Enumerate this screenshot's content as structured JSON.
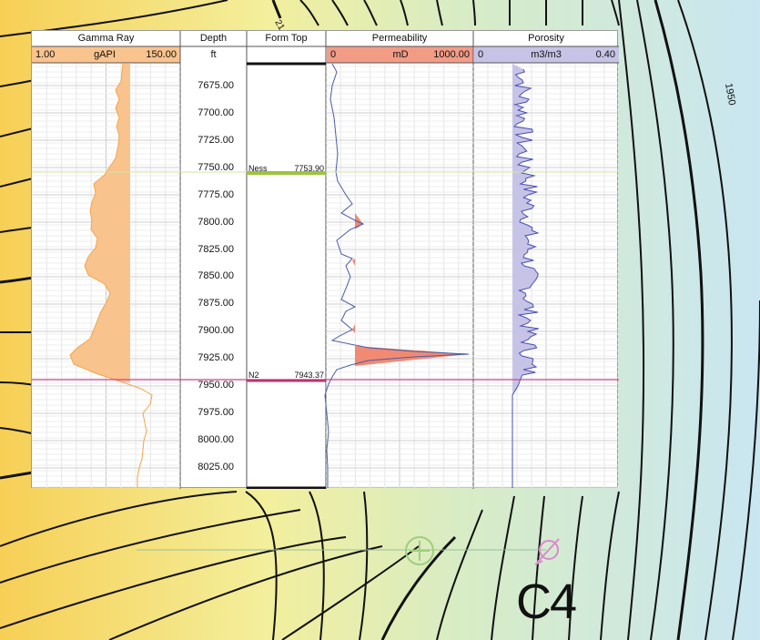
{
  "tracks": {
    "gamma": {
      "title": "Gamma Ray",
      "min": "1.00",
      "unit": "gAPI",
      "max": "150.00",
      "fill": "#f9c38d",
      "header_fill": "#f9c38d"
    },
    "depth": {
      "title": "Depth",
      "unit": "ft"
    },
    "formtop": {
      "title": "Form Top"
    },
    "perm": {
      "title": "Permeability",
      "min": "0",
      "unit": "mD",
      "max": "1000.00",
      "fill": "#f08a73",
      "header_fill": "#f29c86"
    },
    "poro": {
      "title": "Porosity",
      "min": "0",
      "unit": "m3/m3",
      "max": "0.40",
      "fill": "#c7c3e6",
      "header_fill": "#c7c3e6"
    }
  },
  "depth_labels": [
    "7675.00",
    "7700.00",
    "7725.00",
    "7750.00",
    "7775.00",
    "7800.00",
    "7825.00",
    "7850.00",
    "7875.00",
    "7900.00",
    "7925.00",
    "7950.00",
    "7975.00",
    "8000.00",
    "8025.00"
  ],
  "formation_tops": [
    {
      "name": "Ness",
      "depth": "7753.90",
      "color": "#9cc43b"
    },
    {
      "name": "N2",
      "depth": "7943.37",
      "color": "#d1408f"
    }
  ],
  "map": {
    "well_label": "C4",
    "contour_label_1": "1950",
    "contour_label_2": "21"
  },
  "icons": {
    "add_icon": "plus-circle-icon",
    "remove_icon": "slashed-circle-icon"
  }
}
